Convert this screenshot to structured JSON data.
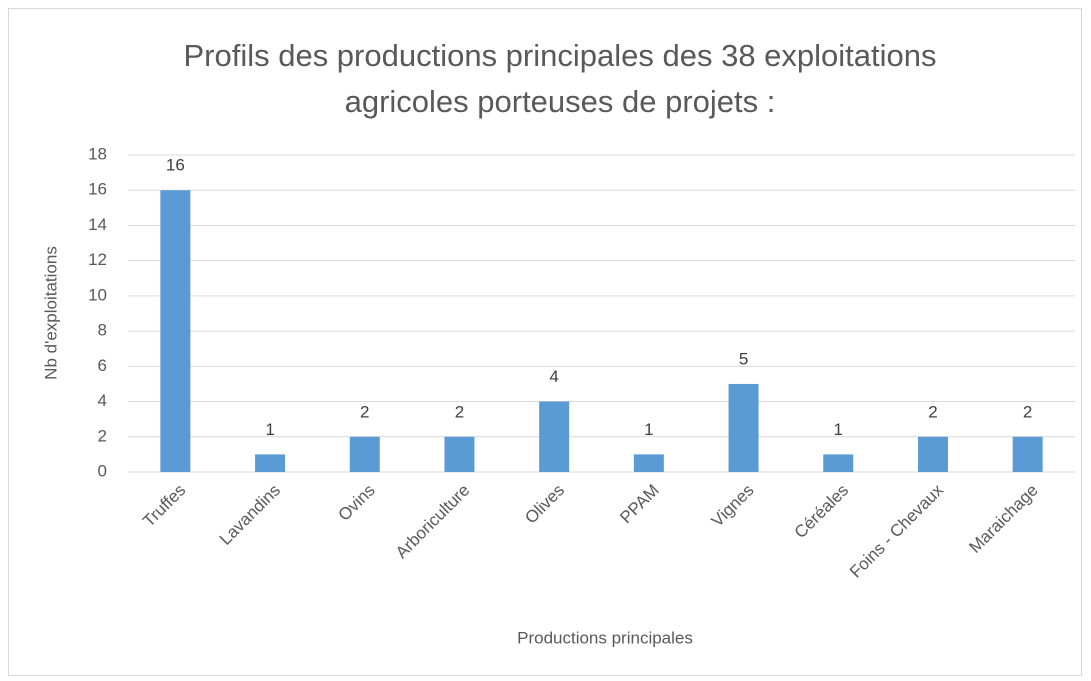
{
  "chart_data": {
    "type": "bar",
    "title": [
      "Profils des productions principales des 38 exploitations",
      "agricoles porteuses de projets :"
    ],
    "x_label": "Productions principales",
    "y_label": "Nb d'exploitations",
    "categories": [
      "Truffes",
      "Lavandins",
      "Ovins",
      "Arboriculture",
      "Olives",
      "PPAM",
      "Vignes",
      "Céréales",
      "Foins - Chevaux",
      "Maraichage"
    ],
    "values": [
      16,
      1,
      2,
      2,
      4,
      1,
      5,
      1,
      2,
      2
    ],
    "color": "#5b9bd5",
    "ylim": [
      0,
      18
    ],
    "yticks": [
      0,
      2,
      4,
      6,
      8,
      10,
      12,
      14,
      16,
      18
    ],
    "grid": true
  }
}
